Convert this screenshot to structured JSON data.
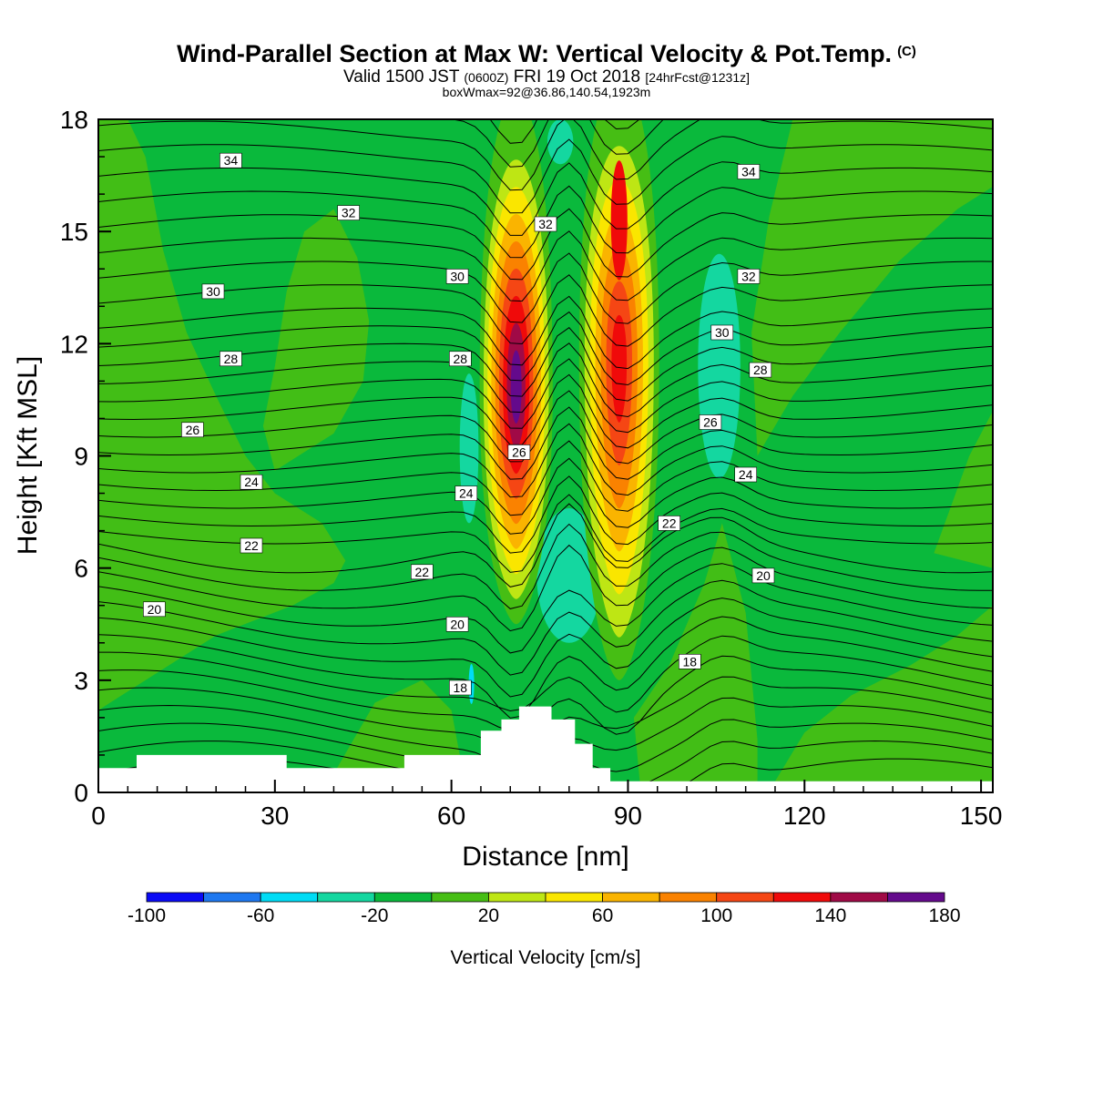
{
  "header": {
    "title": "Wind-Parallel Section at Max W: Vertical Velocity & Pot.Temp.",
    "title_mark": "(C)",
    "valid_prefix": "Valid 1500 JST",
    "valid_zulu": "(0600Z)",
    "valid_date": "FRI 19 Oct 2018",
    "valid_fcst": "[24hrFcst@1231z]",
    "box_info": "boxWmax=92@36.86,140.54,1923m"
  },
  "chart_data": {
    "type": "heatmap",
    "xlabel": "Distance [nm]",
    "ylabel": "Height [Kft MSL]",
    "xlim": [
      0,
      152
    ],
    "ylim": [
      0,
      18
    ],
    "xticks": [
      0,
      30,
      60,
      90,
      120,
      150
    ],
    "yticks": [
      0,
      3,
      6,
      9,
      12,
      15,
      18
    ],
    "colorbar": {
      "label": "Vertical Velocity [cm/s]",
      "bounds": [
        -100,
        180
      ],
      "ticks": [
        -100,
        -60,
        -20,
        20,
        60,
        100,
        140,
        180
      ],
      "colors": [
        "#0a0af5",
        "#1e78f0",
        "#00dcf5",
        "#14d7a0",
        "#0ab93c",
        "#46be14",
        "#bee614",
        "#fae600",
        "#fab400",
        "#fa8200",
        "#f54614",
        "#f00a0a",
        "#a00a46",
        "#640a8c"
      ]
    },
    "updrafts": [
      {
        "name": "updraft-west",
        "x": 71,
        "y_bottom": 4.5,
        "y_top": 18,
        "peak_value": 180,
        "peak_height": 10.8
      },
      {
        "name": "updraft-east",
        "x": 88.5,
        "y_bottom": 3,
        "y_top": 18,
        "peak_value": 140,
        "peak_height": 14.5
      }
    ],
    "downdrafts": [
      {
        "name": "downdraft-mid",
        "x": 80,
        "y_bottom": 4,
        "y_top": 7.6
      },
      {
        "name": "downdraft-top",
        "x": 78.5,
        "y_bottom": 16.8,
        "y_top": 18
      },
      {
        "name": "downdraft-left",
        "x": 63,
        "y_bottom": 7.2,
        "y_top": 11.2
      },
      {
        "name": "downdraft-right",
        "x": 105.5,
        "y_bottom": 8.4,
        "y_top": 14.4
      }
    ],
    "theta_contour_labels": [
      {
        "text": "34",
        "x": 22.5,
        "y": 16.9
      },
      {
        "text": "32",
        "x": 42.5,
        "y": 15.5
      },
      {
        "text": "30",
        "x": 19.5,
        "y": 13.4
      },
      {
        "text": "28",
        "x": 22.5,
        "y": 11.6
      },
      {
        "text": "26",
        "x": 16.0,
        "y": 9.7
      },
      {
        "text": "24",
        "x": 26.0,
        "y": 8.3
      },
      {
        "text": "22",
        "x": 26.0,
        "y": 6.6
      },
      {
        "text": "20",
        "x": 9.5,
        "y": 4.9
      },
      {
        "text": "30",
        "x": 61.0,
        "y": 13.8
      },
      {
        "text": "28",
        "x": 61.5,
        "y": 11.6
      },
      {
        "text": "24",
        "x": 62.5,
        "y": 8.0
      },
      {
        "text": "22",
        "x": 55.0,
        "y": 5.9
      },
      {
        "text": "20",
        "x": 61.0,
        "y": 4.5
      },
      {
        "text": "18",
        "x": 61.5,
        "y": 2.8
      },
      {
        "text": "26",
        "x": 71.5,
        "y": 9.1
      },
      {
        "text": "32",
        "x": 76.0,
        "y": 15.2
      },
      {
        "text": "34",
        "x": 110.5,
        "y": 16.6
      },
      {
        "text": "32",
        "x": 110.5,
        "y": 13.8
      },
      {
        "text": "30",
        "x": 106.0,
        "y": 12.3
      },
      {
        "text": "28",
        "x": 112.5,
        "y": 11.3
      },
      {
        "text": "26",
        "x": 104.0,
        "y": 9.9
      },
      {
        "text": "24",
        "x": 110.0,
        "y": 8.5
      },
      {
        "text": "22",
        "x": 97.0,
        "y": 7.2
      },
      {
        "text": "20",
        "x": 113.0,
        "y": 5.8
      },
      {
        "text": "18",
        "x": 100.5,
        "y": 3.5
      }
    ],
    "terrain": [
      [
        0,
        0.65
      ],
      [
        6.5,
        0.65
      ],
      [
        6.5,
        1.0
      ],
      [
        32,
        1.0
      ],
      [
        32,
        0.65
      ],
      [
        52,
        0.65
      ],
      [
        52,
        1.0
      ],
      [
        65,
        1.0
      ],
      [
        65,
        1.65
      ],
      [
        68.5,
        1.65
      ],
      [
        68.5,
        1.95
      ],
      [
        71.5,
        1.95
      ],
      [
        71.5,
        2.3
      ],
      [
        77,
        2.3
      ],
      [
        77,
        1.95
      ],
      [
        81,
        1.95
      ],
      [
        81,
        1.3
      ],
      [
        84,
        1.3
      ],
      [
        84,
        0.65
      ],
      [
        87,
        0.65
      ],
      [
        87,
        0.3
      ],
      [
        152,
        0.3
      ]
    ]
  }
}
